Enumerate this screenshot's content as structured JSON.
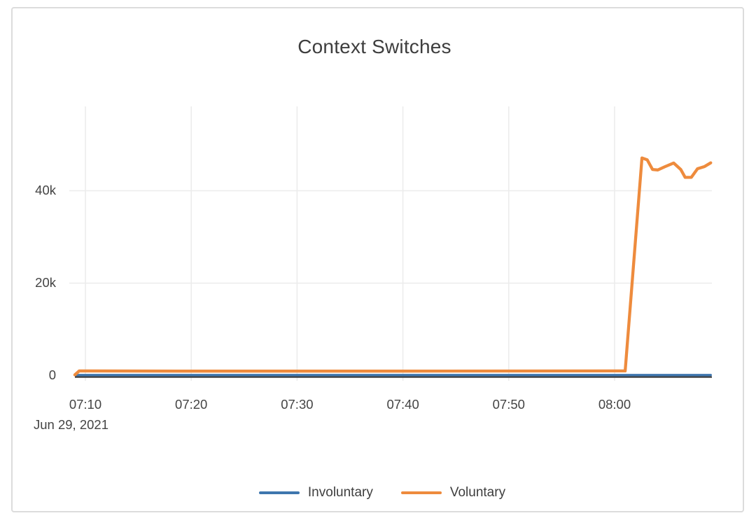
{
  "chart_data": {
    "type": "line",
    "title": "Context Switches",
    "date_annotation": "Jun 29, 2021",
    "x_ticks": [
      "07:10",
      "07:20",
      "07:30",
      "07:40",
      "07:50",
      "08:00"
    ],
    "y_ticks": [
      {
        "value": 0,
        "label": "0"
      },
      {
        "value": 20000,
        "label": "20k"
      },
      {
        "value": 40000,
        "label": "40k"
      }
    ],
    "x_range": [
      "07:09:00",
      "08:09:10"
    ],
    "y_range": [
      0,
      58000
    ],
    "grid": true,
    "legend_position": "bottom-center",
    "colors": {
      "grid": "#ececec",
      "zero_axis": "#404040",
      "text": "#444444"
    },
    "series": [
      {
        "name": "Involuntary",
        "color": "#3e76ae",
        "points": [
          [
            "07:09:00",
            100
          ],
          [
            "07:20:00",
            100
          ],
          [
            "07:40:00",
            100
          ],
          [
            "08:00:00",
            100
          ],
          [
            "08:09:05",
            100
          ]
        ]
      },
      {
        "name": "Voluntary",
        "color": "#ee8b3d",
        "points": [
          [
            "07:09:00",
            150
          ],
          [
            "07:09:25",
            1000
          ],
          [
            "07:20:00",
            950
          ],
          [
            "07:40:00",
            950
          ],
          [
            "08:00:00",
            1000
          ],
          [
            "08:01:00",
            1000
          ],
          [
            "08:02:35",
            47100
          ],
          [
            "08:03:05",
            46700
          ],
          [
            "08:03:35",
            44600
          ],
          [
            "08:04:05",
            44500
          ],
          [
            "08:04:45",
            45200
          ],
          [
            "08:05:35",
            46000
          ],
          [
            "08:06:15",
            44600
          ],
          [
            "08:06:40",
            42900
          ],
          [
            "08:07:15",
            42900
          ],
          [
            "08:07:50",
            44750
          ],
          [
            "08:08:30",
            45250
          ],
          [
            "08:09:05",
            46050
          ]
        ]
      }
    ]
  }
}
